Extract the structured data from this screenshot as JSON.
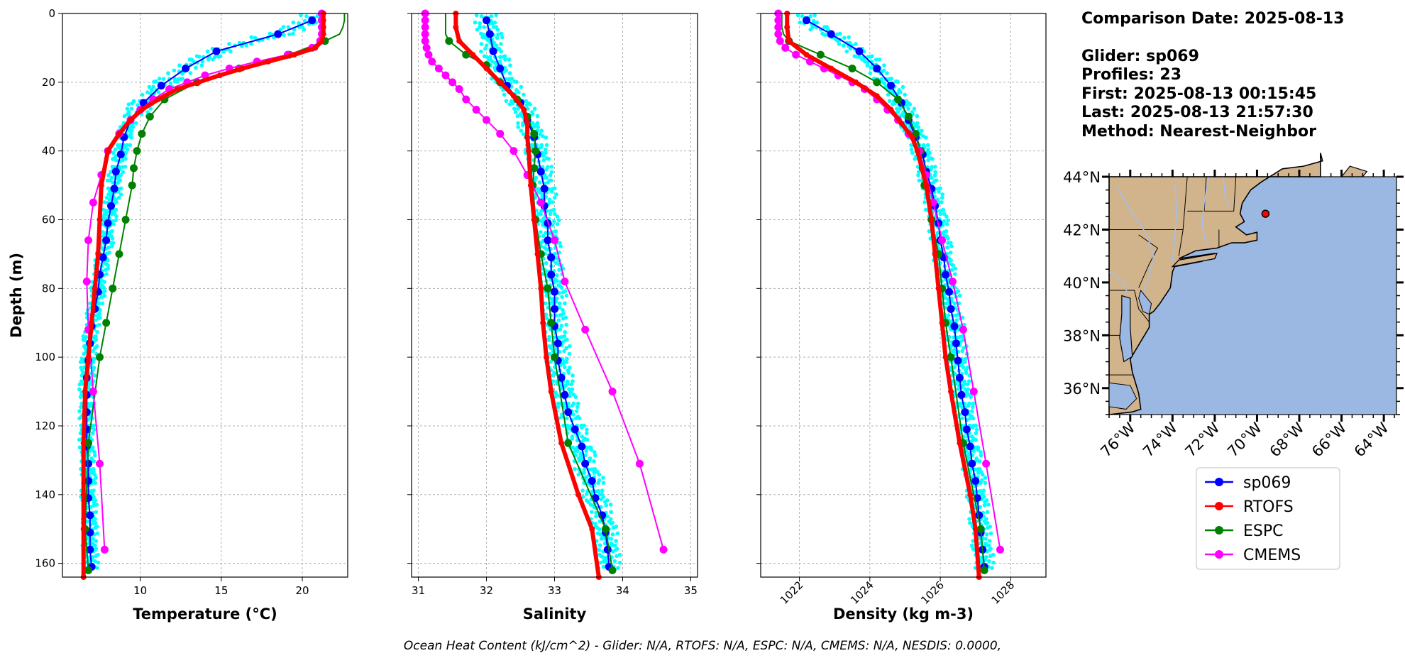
{
  "info": {
    "comparison_date": "Comparison Date: 2025-08-13",
    "glider": "Glider: sp069",
    "profiles": "Profiles: 23",
    "first": "First: 2025-08-13 00:15:45",
    "last": "Last: 2025-08-13 21:57:30",
    "method": "Method: Nearest-Neighbor"
  },
  "footer": "Ocean Heat Content (kJ/cm^2) - Glider: N/A,  RTOFS: N/A,  ESPC: N/A,  CMEMS: N/A,  NESDIS: 0.0000,",
  "colors": {
    "sp069": "#0000ff",
    "RTOFS": "#ff0000",
    "ESPC": "#008000",
    "CMEMS": "#ff00ff",
    "cloud": "#00ffff",
    "land": "#d2b48c",
    "ocean": "#9bb8e2"
  },
  "legend": [
    "sp069",
    "RTOFS",
    "ESPC",
    "CMEMS"
  ],
  "chart_data": [
    {
      "type": "line",
      "xlabel": "Temperature (°C)",
      "ylabel": "Depth (m)",
      "xlim": [
        5.2,
        22.8
      ],
      "ylim": [
        164,
        0
      ],
      "xticks": [
        10,
        15,
        20
      ],
      "yticks": [
        0,
        20,
        40,
        60,
        80,
        100,
        120,
        140,
        160
      ],
      "grid": true,
      "series": [
        {
          "name": "sp069",
          "depth": [
            2,
            6,
            11,
            16,
            21,
            26,
            31,
            36,
            41,
            46,
            51,
            56,
            61,
            66,
            71,
            76,
            81,
            86,
            91,
            96,
            101,
            106,
            111,
            116,
            121,
            126,
            131,
            136,
            141,
            146,
            151,
            156,
            161
          ],
          "values": [
            20.6,
            18.5,
            14.7,
            12.8,
            11.3,
            10.2,
            9.4,
            9.0,
            8.8,
            8.5,
            8.4,
            8.2,
            8.0,
            7.9,
            7.7,
            7.5,
            7.4,
            7.2,
            7.0,
            6.9,
            6.8,
            6.7,
            6.7,
            6.7,
            6.7,
            6.7,
            6.8,
            6.8,
            6.8,
            6.9,
            6.9,
            6.9,
            7.0
          ]
        },
        {
          "name": "RTOFS",
          "depth": [
            0,
            2,
            4,
            6,
            8,
            10,
            12,
            14,
            16,
            18,
            20,
            22,
            25,
            28,
            31,
            35,
            40,
            50,
            60,
            70,
            80,
            90,
            100,
            110,
            125,
            140,
            150,
            164
          ],
          "values": [
            21.3,
            21.3,
            21.3,
            21.3,
            21.2,
            20.8,
            19.5,
            17.9,
            16.3,
            14.9,
            13.6,
            12.3,
            11.1,
            10.1,
            9.4,
            8.7,
            8.0,
            7.6,
            7.5,
            7.4,
            7.2,
            7.0,
            6.8,
            6.6,
            6.5,
            6.5,
            6.5,
            6.5
          ]
        },
        {
          "name": "ESPC",
          "depth": [
            0,
            2,
            4,
            6,
            8,
            12,
            16,
            20,
            25,
            30,
            35,
            40,
            45,
            50,
            60,
            70,
            80,
            90,
            100,
            125,
            150,
            162
          ],
          "values": [
            22.6,
            22.6,
            22.5,
            22.3,
            21.4,
            19.2,
            16.1,
            13.5,
            11.5,
            10.6,
            10.1,
            9.8,
            9.6,
            9.5,
            9.1,
            8.7,
            8.3,
            7.9,
            7.5,
            6.8,
            6.6,
            6.8
          ]
        },
        {
          "name": "CMEMS",
          "depth": [
            0,
            2,
            4,
            6,
            8,
            10,
            12,
            14,
            16,
            18,
            20,
            22,
            25,
            28,
            31,
            35,
            40,
            47,
            55,
            66,
            78,
            92,
            110,
            131,
            156
          ],
          "values": [
            21.2,
            21.2,
            21.2,
            21.2,
            21.1,
            20.6,
            19.1,
            17.2,
            15.5,
            14.0,
            12.9,
            11.8,
            10.8,
            10.0,
            9.4,
            8.7,
            8.0,
            7.6,
            7.1,
            6.8,
            6.7,
            6.8,
            7.1,
            7.5,
            7.8
          ]
        }
      ]
    },
    {
      "type": "line",
      "xlabel": "Salinity",
      "ylabel": "",
      "xlim": [
        30.9,
        35.1
      ],
      "ylim": [
        164,
        0
      ],
      "xticks": [
        31,
        32,
        33,
        34,
        35
      ],
      "yticks": [
        0,
        20,
        40,
        60,
        80,
        100,
        120,
        140,
        160
      ],
      "grid": true,
      "series": [
        {
          "name": "sp069",
          "depth": [
            2,
            6,
            11,
            16,
            21,
            26,
            31,
            36,
            41,
            46,
            51,
            56,
            61,
            66,
            71,
            76,
            81,
            86,
            91,
            96,
            101,
            106,
            111,
            116,
            121,
            126,
            131,
            136,
            141,
            146,
            151,
            156,
            161
          ],
          "values": [
            32.0,
            32.05,
            32.1,
            32.2,
            32.3,
            32.5,
            32.6,
            32.7,
            32.75,
            32.8,
            32.85,
            32.85,
            32.9,
            32.9,
            32.95,
            32.95,
            33.0,
            33.0,
            33.0,
            33.05,
            33.05,
            33.1,
            33.15,
            33.2,
            33.3,
            33.4,
            33.45,
            33.55,
            33.6,
            33.7,
            33.75,
            33.78,
            33.8
          ]
        },
        {
          "name": "RTOFS",
          "depth": [
            0,
            4,
            8,
            12,
            16,
            20,
            24,
            28,
            32,
            36,
            40,
            50,
            60,
            70,
            80,
            90,
            100,
            110,
            125,
            140,
            150,
            164
          ],
          "values": [
            31.55,
            31.55,
            31.6,
            31.8,
            32.0,
            32.2,
            32.4,
            32.55,
            32.6,
            32.6,
            32.62,
            32.65,
            32.7,
            32.75,
            32.8,
            32.83,
            32.88,
            32.95,
            33.1,
            33.35,
            33.55,
            33.65
          ]
        },
        {
          "name": "ESPC",
          "depth": [
            0,
            2,
            4,
            6,
            8,
            12,
            15,
            20,
            25,
            30,
            35,
            40,
            45,
            50,
            60,
            70,
            80,
            90,
            100,
            125,
            150,
            162
          ],
          "values": [
            31.4,
            31.4,
            31.4,
            31.4,
            31.45,
            31.7,
            32.0,
            32.2,
            32.45,
            32.6,
            32.7,
            32.72,
            32.7,
            32.68,
            32.72,
            32.8,
            32.9,
            32.95,
            33.0,
            33.2,
            33.75,
            33.85
          ]
        },
        {
          "name": "CMEMS",
          "depth": [
            0,
            2,
            4,
            6,
            8,
            10,
            12,
            14,
            16,
            18,
            20,
            22,
            25,
            28,
            31,
            35,
            40,
            47,
            55,
            66,
            78,
            92,
            110,
            131,
            156
          ],
          "values": [
            31.1,
            31.1,
            31.1,
            31.1,
            31.1,
            31.12,
            31.15,
            31.2,
            31.3,
            31.4,
            31.5,
            31.6,
            31.7,
            31.85,
            32.0,
            32.2,
            32.4,
            32.6,
            32.8,
            33.0,
            33.15,
            33.45,
            33.85,
            34.25,
            34.6
          ]
        }
      ]
    },
    {
      "type": "line",
      "xlabel": "Density (kg m-3)",
      "ylabel": "",
      "xlim": [
        1020.9,
        1029.0
      ],
      "ylim": [
        164,
        0
      ],
      "xticks": [
        1022,
        1024,
        1026,
        1028
      ],
      "yticks": [
        0,
        20,
        40,
        60,
        80,
        100,
        120,
        140,
        160
      ],
      "grid": true,
      "series": [
        {
          "name": "sp069",
          "depth": [
            2,
            6,
            11,
            16,
            21,
            26,
            31,
            36,
            41,
            46,
            51,
            56,
            61,
            66,
            71,
            76,
            81,
            86,
            91,
            96,
            101,
            106,
            111,
            116,
            121,
            126,
            131,
            136,
            141,
            146,
            151,
            156,
            161
          ],
          "values": [
            1022.2,
            1022.9,
            1023.7,
            1024.2,
            1024.6,
            1024.9,
            1025.1,
            1025.3,
            1025.5,
            1025.6,
            1025.75,
            1025.85,
            1025.95,
            1026.0,
            1026.1,
            1026.15,
            1026.25,
            1026.3,
            1026.4,
            1026.45,
            1026.5,
            1026.55,
            1026.6,
            1026.7,
            1026.75,
            1026.85,
            1026.9,
            1027.0,
            1027.05,
            1027.1,
            1027.15,
            1027.2,
            1027.25
          ]
        },
        {
          "name": "RTOFS",
          "depth": [
            0,
            4,
            8,
            12,
            16,
            20,
            24,
            28,
            32,
            36,
            40,
            50,
            60,
            70,
            80,
            90,
            100,
            110,
            125,
            140,
            150,
            164
          ],
          "values": [
            1021.65,
            1021.65,
            1021.7,
            1022.2,
            1022.9,
            1023.6,
            1024.2,
            1024.6,
            1024.9,
            1025.2,
            1025.35,
            1025.6,
            1025.75,
            1025.85,
            1025.95,
            1026.05,
            1026.15,
            1026.3,
            1026.55,
            1026.85,
            1027.0,
            1027.1
          ]
        },
        {
          "name": "ESPC",
          "depth": [
            0,
            2,
            4,
            6,
            8,
            12,
            16,
            20,
            25,
            30,
            35,
            40,
            45,
            50,
            60,
            70,
            80,
            90,
            100,
            125,
            150,
            162
          ],
          "values": [
            1021.5,
            1021.5,
            1021.5,
            1021.55,
            1021.7,
            1022.6,
            1023.5,
            1024.2,
            1024.8,
            1025.1,
            1025.3,
            1025.45,
            1025.5,
            1025.55,
            1025.75,
            1025.95,
            1026.05,
            1026.15,
            1026.3,
            1026.65,
            1027.15,
            1027.25
          ]
        },
        {
          "name": "CMEMS",
          "depth": [
            0,
            2,
            4,
            6,
            8,
            10,
            12,
            14,
            16,
            18,
            20,
            22,
            25,
            28,
            31,
            35,
            40,
            47,
            55,
            66,
            78,
            92,
            110,
            131,
            156
          ],
          "values": [
            1021.4,
            1021.4,
            1021.4,
            1021.4,
            1021.45,
            1021.6,
            1021.9,
            1022.3,
            1022.7,
            1023.1,
            1023.5,
            1023.85,
            1024.2,
            1024.5,
            1024.8,
            1025.1,
            1025.4,
            1025.6,
            1025.8,
            1026.05,
            1026.35,
            1026.65,
            1026.95,
            1027.3,
            1027.7
          ]
        }
      ]
    }
  ],
  "map": {
    "lat_labels": [
      "44°N",
      "42°N",
      "40°N",
      "38°N",
      "36°N"
    ],
    "lat_values": [
      44,
      42,
      40,
      38,
      36
    ],
    "lon_labels": [
      "76°W",
      "74°W",
      "72°W",
      "70°W",
      "68°W",
      "66°W",
      "64°W"
    ],
    "lon_values": [
      -76,
      -74,
      -72,
      -70,
      -68,
      -66,
      -64
    ],
    "lon_range": [
      -77.0,
      -63.4
    ],
    "lat_range": [
      35.0,
      44.0
    ],
    "glider_position": {
      "lon": -69.6,
      "lat": 42.6
    }
  }
}
